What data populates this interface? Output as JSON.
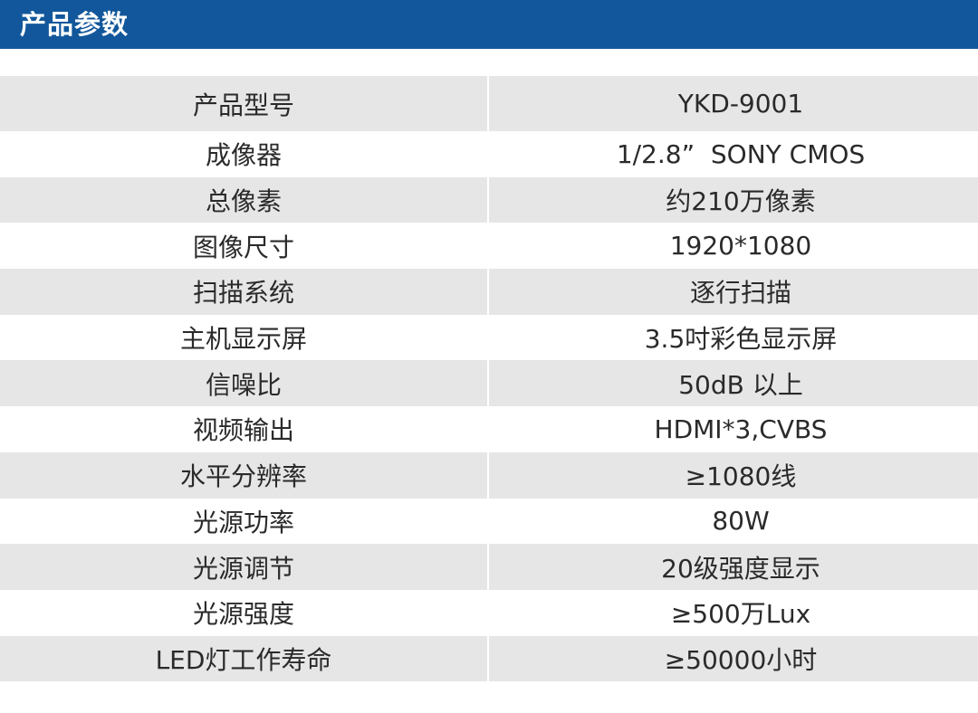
{
  "header": {
    "title": "产品参数",
    "background_color": "#12579b"
  },
  "table": {
    "rows": [
      {
        "label": "产品型号",
        "value": "YKD-9001"
      },
      {
        "label": "成像器",
        "value": "1/2.8”  SONY CMOS"
      },
      {
        "label": "总像素",
        "value": "约210万像素"
      },
      {
        "label": "图像尺寸",
        "value": "1920*1080"
      },
      {
        "label": "扫描系统",
        "value": "逐行扫描"
      },
      {
        "label": "主机显示屏",
        "value": "3.5吋彩色显示屏"
      },
      {
        "label": "信噪比",
        "value": "50dB 以上"
      },
      {
        "label": "视频输出",
        "value": "HDMI*3,CVBS"
      },
      {
        "label": "水平分辨率",
        "value": "≥1080线"
      },
      {
        "label": "光源功率",
        "value": "80W"
      },
      {
        "label": "光源调节",
        "value": "20级强度显示"
      },
      {
        "label": "光源强度",
        "value": "≥500万Lux"
      },
      {
        "label": "LED灯工作寿命",
        "value": "≥50000小时"
      }
    ],
    "shaded_color": "#e6e6e6"
  }
}
